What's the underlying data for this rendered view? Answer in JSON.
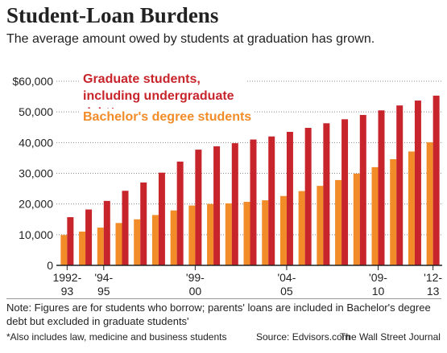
{
  "chart_data": {
    "type": "bar",
    "title": "Student-Loan Burdens",
    "subtitle": "The average amount owed by students at graduation has grown.",
    "categories": [
      "1992-93",
      null,
      "'94-95",
      null,
      null,
      null,
      null,
      "'99-00",
      null,
      null,
      null,
      null,
      "'04-05",
      null,
      null,
      null,
      null,
      "'09-10",
      null,
      null,
      "'12-13"
    ],
    "series": [
      {
        "name": "Bachelor's degree students",
        "color": "#f28c28",
        "values": [
          9900,
          11000,
          12300,
          13800,
          15000,
          16400,
          17900,
          19500,
          20000,
          20200,
          20700,
          21200,
          22600,
          24200,
          25900,
          27800,
          29900,
          32000,
          34600,
          37100,
          40100
        ]
      },
      {
        "name": "Graduate students, including undergraduate debt*",
        "color": "#c8242b",
        "values": [
          15700,
          18200,
          21000,
          24300,
          27000,
          30200,
          33800,
          37700,
          38800,
          39800,
          41000,
          42000,
          43500,
          44800,
          46300,
          47600,
          49000,
          50500,
          52100,
          53700,
          55300
        ]
      }
    ],
    "ylim": [
      0,
      60000
    ],
    "yticks": [
      0,
      {
        "value": 10000,
        "label": "10,000"
      },
      {
        "value": 20000,
        "label": "20,000"
      },
      {
        "value": 30000,
        "label": "30,000"
      },
      {
        "value": 40000,
        "label": "40,000"
      },
      {
        "value": 50000,
        "label": "50,000"
      },
      {
        "value": 60000,
        "label": "$60,000"
      }
    ],
    "grid": true,
    "note": "Note: Figures are for students who borrow; parents' loans are included in Bachelor's degree debt but excluded in graduate students'",
    "footnote": "*Also includes law, medicine and business students",
    "source": "Source: Edvisors.com",
    "credit": "The Wall Street Journal"
  }
}
